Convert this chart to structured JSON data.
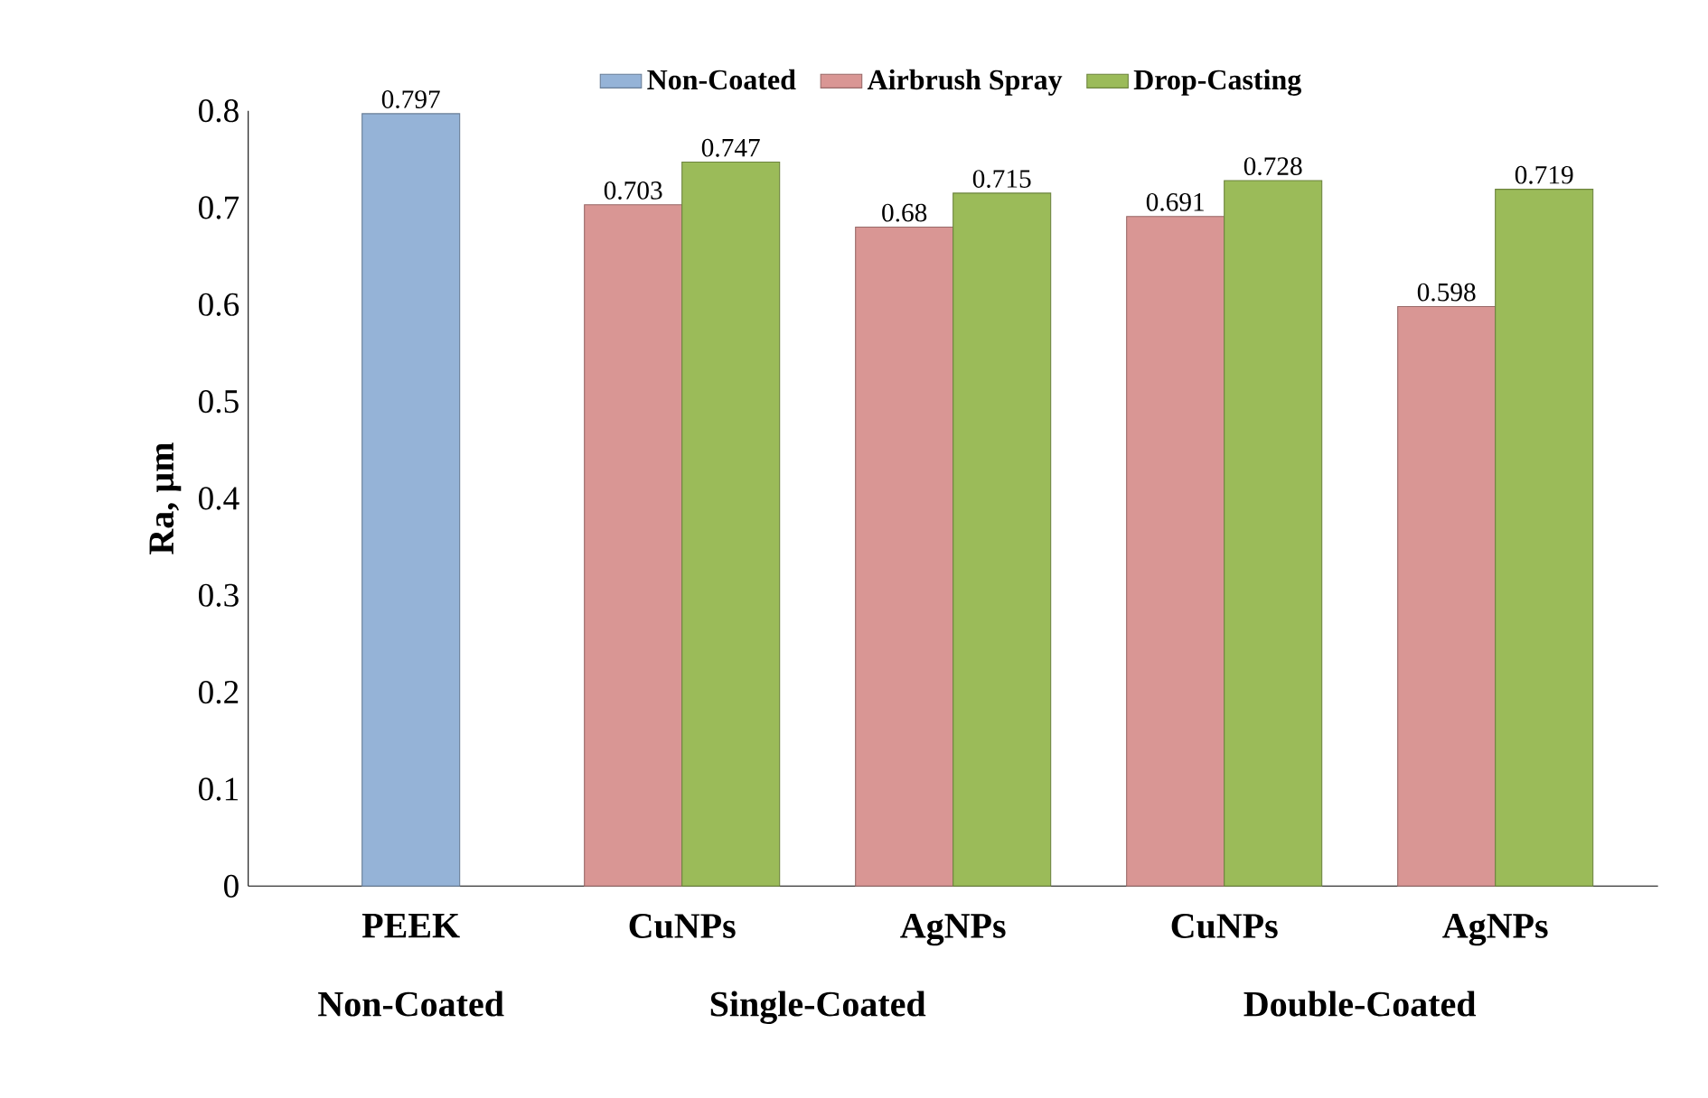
{
  "chart_data": {
    "type": "bar",
    "ylabel": "Ra, µm",
    "categories": [
      "PEEK",
      "CuNPs",
      "AgNPs",
      "CuNPs",
      "AgNPs"
    ],
    "series": [
      {
        "name": "Non-Coated",
        "color": "#95b3d7",
        "values": [
          0.797,
          null,
          null,
          null,
          null
        ]
      },
      {
        "name": "Airbrush Spray",
        "color": "#d99694",
        "values": [
          null,
          0.703,
          0.68,
          0.691,
          0.598
        ]
      },
      {
        "name": "Drop-Casting",
        "color": "#9bbb59",
        "values": [
          null,
          0.747,
          0.715,
          0.728,
          0.719
        ]
      }
    ],
    "ylim": [
      0,
      0.8
    ],
    "yticks": [
      0,
      0.1,
      0.2,
      0.3,
      0.4,
      0.5,
      0.6,
      0.7,
      0.8
    ],
    "data_labels": true,
    "legend": "top",
    "annotations": [
      "Non-Coated",
      "Single-Coated",
      "Double-Coated"
    ]
  }
}
